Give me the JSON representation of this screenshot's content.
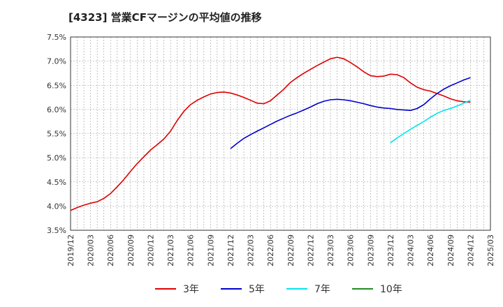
{
  "chart_data": {
    "type": "line",
    "title": "[4323]  営業CFマージンの平均値の推移",
    "xlabel": "",
    "ylabel": "",
    "ylim": [
      3.5,
      7.5
    ],
    "y_ticks": [
      "3.5%",
      "4.0%",
      "4.5%",
      "5.0%",
      "5.5%",
      "6.0%",
      "6.5%",
      "7.0%",
      "7.5%"
    ],
    "x_ticks": [
      "2019/12",
      "2020/03",
      "2020/06",
      "2020/09",
      "2020/12",
      "2021/03",
      "2021/06",
      "2021/09",
      "2021/12",
      "2022/03",
      "2022/06",
      "2022/09",
      "2022/12",
      "2023/03",
      "2023/06",
      "2023/09",
      "2023/12",
      "2024/03",
      "2024/06",
      "2024/09",
      "2024/12",
      "2025/03"
    ],
    "grid": true,
    "legend_position": "bottom",
    "series": [
      {
        "name": "3年",
        "color": "#dd0000",
        "points": [
          [
            "2019/12",
            3.91
          ],
          [
            "2020/01",
            3.97
          ],
          [
            "2020/02",
            4.02
          ],
          [
            "2020/03",
            4.06
          ],
          [
            "2020/04",
            4.09
          ],
          [
            "2020/05",
            4.16
          ],
          [
            "2020/06",
            4.26
          ],
          [
            "2020/07",
            4.4
          ],
          [
            "2020/08",
            4.55
          ],
          [
            "2020/09",
            4.72
          ],
          [
            "2020/10",
            4.88
          ],
          [
            "2020/11",
            5.02
          ],
          [
            "2020/12",
            5.16
          ],
          [
            "2021/01",
            5.27
          ],
          [
            "2021/02",
            5.39
          ],
          [
            "2021/03",
            5.55
          ],
          [
            "2021/04",
            5.77
          ],
          [
            "2021/05",
            5.96
          ],
          [
            "2021/06",
            6.1
          ],
          [
            "2021/07",
            6.19
          ],
          [
            "2021/08",
            6.26
          ],
          [
            "2021/09",
            6.32
          ],
          [
            "2021/10",
            6.35
          ],
          [
            "2021/11",
            6.36
          ],
          [
            "2021/12",
            6.34
          ],
          [
            "2022/01",
            6.3
          ],
          [
            "2022/02",
            6.25
          ],
          [
            "2022/03",
            6.19
          ],
          [
            "2022/04",
            6.13
          ],
          [
            "2022/05",
            6.12
          ],
          [
            "2022/06",
            6.18
          ],
          [
            "2022/07",
            6.3
          ],
          [
            "2022/08",
            6.42
          ],
          [
            "2022/09",
            6.56
          ],
          [
            "2022/10",
            6.66
          ],
          [
            "2022/11",
            6.75
          ],
          [
            "2022/12",
            6.83
          ],
          [
            "2023/01",
            6.91
          ],
          [
            "2023/02",
            6.98
          ],
          [
            "2023/03",
            7.05
          ],
          [
            "2023/04",
            7.08
          ],
          [
            "2023/05",
            7.05
          ],
          [
            "2023/06",
            6.97
          ],
          [
            "2023/07",
            6.88
          ],
          [
            "2023/08",
            6.78
          ],
          [
            "2023/09",
            6.7
          ],
          [
            "2023/10",
            6.68
          ],
          [
            "2023/11",
            6.69
          ],
          [
            "2023/12",
            6.73
          ],
          [
            "2024/01",
            6.72
          ],
          [
            "2024/02",
            6.66
          ],
          [
            "2024/03",
            6.55
          ],
          [
            "2024/04",
            6.46
          ],
          [
            "2024/05",
            6.41
          ],
          [
            "2024/06",
            6.38
          ],
          [
            "2024/07",
            6.33
          ],
          [
            "2024/08",
            6.28
          ],
          [
            "2024/09",
            6.22
          ],
          [
            "2024/10",
            6.18
          ],
          [
            "2024/11",
            6.16
          ],
          [
            "2024/12",
            6.15
          ]
        ]
      },
      {
        "name": "5年",
        "color": "#0000cc",
        "points": [
          [
            "2021/12",
            5.19
          ],
          [
            "2022/01",
            5.3
          ],
          [
            "2022/02",
            5.4
          ],
          [
            "2022/03",
            5.48
          ],
          [
            "2022/04",
            5.55
          ],
          [
            "2022/05",
            5.62
          ],
          [
            "2022/06",
            5.69
          ],
          [
            "2022/07",
            5.76
          ],
          [
            "2022/08",
            5.82
          ],
          [
            "2022/09",
            5.88
          ],
          [
            "2022/10",
            5.93
          ],
          [
            "2022/11",
            5.99
          ],
          [
            "2022/12",
            6.05
          ],
          [
            "2023/01",
            6.12
          ],
          [
            "2023/02",
            6.17
          ],
          [
            "2023/03",
            6.2
          ],
          [
            "2023/04",
            6.21
          ],
          [
            "2023/05",
            6.2
          ],
          [
            "2023/06",
            6.18
          ],
          [
            "2023/07",
            6.15
          ],
          [
            "2023/08",
            6.12
          ],
          [
            "2023/09",
            6.08
          ],
          [
            "2023/10",
            6.05
          ],
          [
            "2023/11",
            6.03
          ],
          [
            "2023/12",
            6.02
          ],
          [
            "2024/01",
            6.0
          ],
          [
            "2024/02",
            5.99
          ],
          [
            "2024/03",
            5.98
          ],
          [
            "2024/04",
            6.02
          ],
          [
            "2024/05",
            6.1
          ],
          [
            "2024/06",
            6.22
          ],
          [
            "2024/07",
            6.33
          ],
          [
            "2024/08",
            6.42
          ],
          [
            "2024/09",
            6.49
          ],
          [
            "2024/10",
            6.55
          ],
          [
            "2024/11",
            6.61
          ],
          [
            "2024/12",
            6.66
          ]
        ]
      },
      {
        "name": "7年",
        "color": "#00e5ee",
        "points": [
          [
            "2023/12",
            5.31
          ],
          [
            "2024/01",
            5.41
          ],
          [
            "2024/02",
            5.5
          ],
          [
            "2024/03",
            5.59
          ],
          [
            "2024/04",
            5.67
          ],
          [
            "2024/05",
            5.75
          ],
          [
            "2024/06",
            5.84
          ],
          [
            "2024/07",
            5.92
          ],
          [
            "2024/08",
            5.98
          ],
          [
            "2024/09",
            6.02
          ],
          [
            "2024/10",
            6.07
          ],
          [
            "2024/11",
            6.13
          ],
          [
            "2024/12",
            6.19
          ]
        ]
      },
      {
        "name": "10年",
        "color": "#228b22",
        "points": []
      }
    ]
  }
}
